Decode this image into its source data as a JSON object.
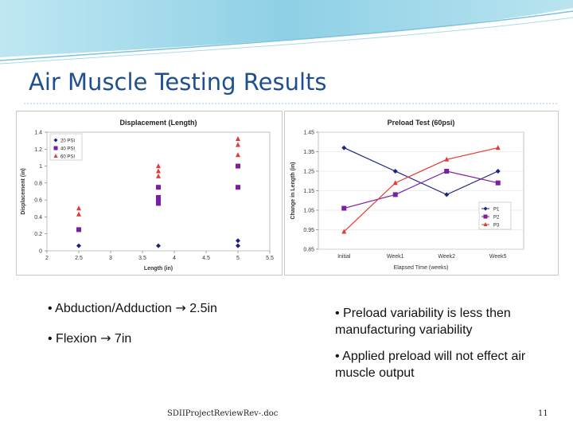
{
  "slide": {
    "title": "Air Muscle Testing Results",
    "footer": "SDIIProjectReviewRev-.doc",
    "page_number": "11",
    "accent_color": "#1f4f8f"
  },
  "bullets_left": [
    {
      "prefix": "• Abduction/Adduction",
      "arrow": "→",
      "suffix": " 2.5in"
    },
    {
      "prefix": "• Flexion",
      "arrow": "→",
      "suffix": " 7in"
    }
  ],
  "bullets_right": [
    {
      "text": "• Preload variability is less then manufacturing variability"
    },
    {
      "text": "• Applied preload will not effect air muscle output"
    }
  ],
  "chart_data": [
    {
      "type": "scatter",
      "title": "Displacement (Length)",
      "xlabel": "Length (in)",
      "ylabel": "Displacement (in)",
      "xlim": [
        2,
        5.5
      ],
      "ylim": [
        0,
        1.4
      ],
      "xticks": [
        "2",
        "2.5",
        "3",
        "3.5",
        "4",
        "4.5",
        "5",
        "5.5"
      ],
      "yticks": [
        "0",
        "0.2",
        "0.4",
        "0.6",
        "0.8",
        "1",
        "1.2",
        "1.4"
      ],
      "legend_position": "top-left",
      "series": [
        {
          "name": "20 PSI",
          "color": "#1a237e",
          "marker": "diamond",
          "points": [
            [
              2.5,
              0.06
            ],
            [
              3.75,
              0.06
            ],
            [
              5.0,
              0.06
            ],
            [
              5.0,
              0.12
            ]
          ]
        },
        {
          "name": "40 PSI",
          "color": "#7b1fa2",
          "marker": "square",
          "points": [
            [
              2.5,
              0.25
            ],
            [
              3.75,
              0.56
            ],
            [
              3.75,
              0.6
            ],
            [
              3.75,
              0.63
            ],
            [
              3.75,
              0.75
            ],
            [
              5.0,
              0.75
            ],
            [
              5.0,
              1.0
            ]
          ]
        },
        {
          "name": "60 PSI",
          "color": "#e53935",
          "marker": "triangle",
          "points": [
            [
              2.5,
              0.43
            ],
            [
              2.5,
              0.5
            ],
            [
              3.75,
              0.88
            ],
            [
              3.75,
              0.94
            ],
            [
              3.75,
              1.0
            ],
            [
              5.0,
              1.13
            ],
            [
              5.0,
              1.25
            ],
            [
              5.0,
              1.32
            ]
          ]
        }
      ]
    },
    {
      "type": "line",
      "title": "Preload Test (60psi)",
      "xlabel": "Elapsed Time (weeks)",
      "ylabel": "Change in Length (in)",
      "categories": [
        "Initial",
        "Week1",
        "Week2",
        "Week5"
      ],
      "ylim": [
        0.85,
        1.45
      ],
      "yticks": [
        "0.85",
        "0.95",
        "1.05",
        "1.15",
        "1.25",
        "1.35",
        "1.45"
      ],
      "legend_position": "right",
      "series": [
        {
          "name": "P1",
          "color": "#1a237e",
          "marker": "diamond",
          "values": [
            1.37,
            1.25,
            1.13,
            1.25
          ]
        },
        {
          "name": "P2",
          "color": "#7b1fa2",
          "marker": "square",
          "values": [
            1.06,
            1.13,
            1.25,
            1.19
          ]
        },
        {
          "name": "P3",
          "color": "#e53935",
          "marker": "triangle",
          "values": [
            0.94,
            1.19,
            1.31,
            1.37
          ]
        }
      ]
    }
  ]
}
